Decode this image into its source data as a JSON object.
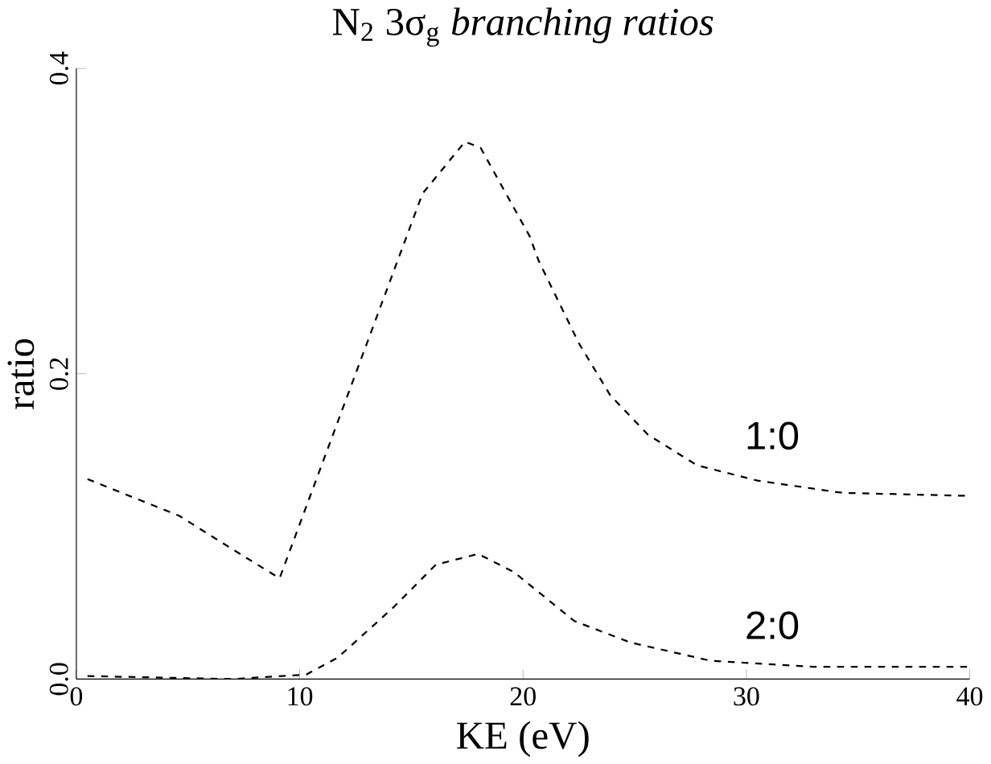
{
  "chart_data": {
    "type": "line",
    "title": "N$_{2}$ 3σ$_{g}$ *branching ratios*",
    "xlabel": "KE (eV)",
    "ylabel": "ratio",
    "xlim": [
      0,
      40
    ],
    "ylim": [
      0,
      0.4
    ],
    "xticks": [
      0,
      10,
      20,
      30,
      40
    ],
    "yticks": [
      {
        "value": 0,
        "label": "0.0"
      },
      {
        "value": 0.2,
        "label": "0.2"
      },
      {
        "value": 0.4,
        "label": "0.4"
      }
    ],
    "grid": false,
    "marker": "none",
    "series": [
      {
        "name": "1:0",
        "color": "#000000",
        "line_style": "dashed",
        "x": [
          0.5,
          4.6,
          7.0,
          9.1,
          15.5,
          17.4,
          18.1,
          20.3,
          20.7,
          22.5,
          23.9,
          25.6,
          27.8,
          30.5,
          34.3,
          40
        ],
        "values": [
          0.131,
          0.107,
          0.085,
          0.066,
          0.318,
          0.352,
          0.348,
          0.29,
          0.274,
          0.22,
          0.186,
          0.16,
          0.14,
          0.13,
          0.122,
          0.12
        ]
      },
      {
        "name": "2:0",
        "color": "#000000",
        "line_style": "dashed",
        "x": [
          0.5,
          7,
          10.3,
          11.7,
          14.2,
          16.1,
          18,
          19.6,
          22.3,
          24.8,
          28.4,
          33,
          40
        ],
        "values": [
          0.002,
          0,
          0.003,
          0.014,
          0.047,
          0.075,
          0.082,
          0.07,
          0.038,
          0.024,
          0.012,
          0.008,
          0.008
        ]
      }
    ]
  }
}
